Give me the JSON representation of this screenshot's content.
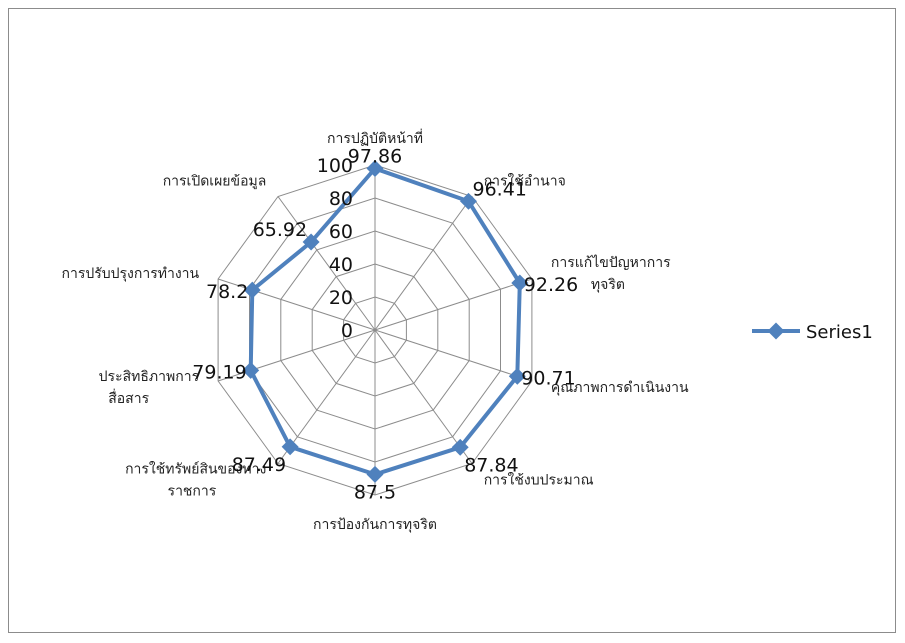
{
  "chart_data": {
    "type": "radar",
    "categories": [
      "การปฏิบัติหน้าที่",
      "การใช้อำนาจ",
      "การแก้ไขปัญหาการทุจริต",
      "คุณภาพการดำเนินงาน",
      "การใช้งบประมาณ",
      "การป้องกันการทุจริต",
      "การใช้ทรัพย์สินของทางราชการ",
      "ประสิทธิภาพการสื่อสาร",
      "การปรับปรุงการทำงาน",
      "การเปิดเผยข้อมูล"
    ],
    "category_lines": [
      [
        "การปฏิบัติหน้าที่"
      ],
      [
        "การใช้อำนาจ"
      ],
      [
        "การแก้ไขปัญหาการ",
        "ทุจริต"
      ],
      [
        "คุณภาพการดำเนินงาน"
      ],
      [
        "การใช้งบประมาณ"
      ],
      [
        "การป้องกันการทุจริต"
      ],
      [
        "การใช้ทรัพย์สินของทาง",
        "ราชการ"
      ],
      [
        "ประสิทธิภาพการ",
        "สื่อสาร"
      ],
      [
        "การปรับปรุงการทำงาน"
      ],
      [
        "การเปิดเผยข้อมูล"
      ]
    ],
    "series": [
      {
        "name": "Series1",
        "color": "#4f81bd",
        "values": [
          97.86,
          96.41,
          92.26,
          90.71,
          87.84,
          87.5,
          87.49,
          79.19,
          78.2,
          65.92
        ],
        "labels": [
          "97.86",
          "96.41",
          "92.26",
          "90.71",
          "87.84",
          "87.5",
          "87.49",
          "79.19",
          "78.2",
          "65.92"
        ]
      }
    ],
    "rlim": [
      0,
      100
    ],
    "ticks": [
      0,
      20,
      40,
      60,
      80,
      100
    ],
    "grid": true,
    "legend": "right"
  }
}
